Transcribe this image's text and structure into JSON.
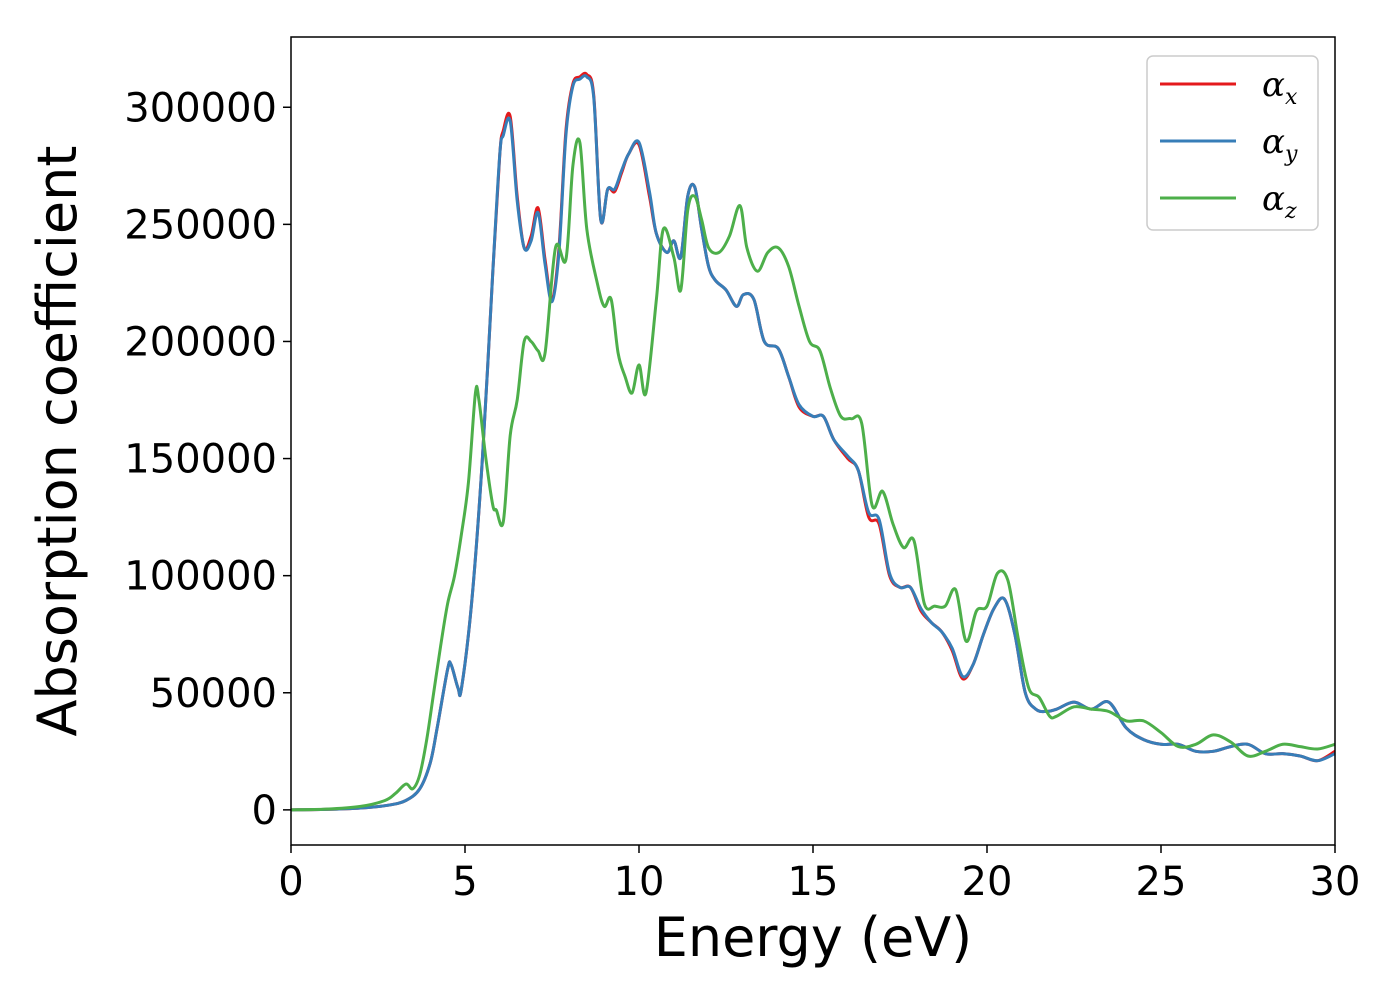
{
  "chart_data": {
    "type": "line",
    "title": "",
    "xlabel": "Energy (eV)",
    "ylabel": "Absorption coefficient",
    "xlim": [
      0,
      30
    ],
    "ylim": [
      -15000,
      330000
    ],
    "xticks": [
      0,
      5,
      10,
      15,
      20,
      25,
      30
    ],
    "xtick_labels": [
      "0",
      "5",
      "10",
      "15",
      "20",
      "25",
      "30"
    ],
    "yticks": [
      0,
      50000,
      100000,
      150000,
      200000,
      250000,
      300000
    ],
    "ytick_labels": [
      "0",
      "50000",
      "100000",
      "150000",
      "200000",
      "250000",
      "300000"
    ],
    "grid": false,
    "legend_position": "top-right",
    "series": [
      {
        "name": "α_x",
        "legend_base": "α",
        "legend_sub": "x",
        "color": "#e41a1c",
        "x": [
          0,
          1,
          2,
          2.8,
          3.3,
          3.7,
          4.0,
          4.2,
          4.5,
          4.6,
          4.8,
          4.9,
          5.2,
          5.5,
          5.8,
          6.0,
          6.1,
          6.3,
          6.5,
          6.7,
          6.9,
          7.1,
          7.3,
          7.5,
          7.7,
          7.9,
          8.1,
          8.3,
          8.5,
          8.7,
          8.9,
          9.1,
          9.3,
          9.5,
          9.7,
          10.0,
          10.3,
          10.5,
          10.8,
          11.0,
          11.2,
          11.4,
          11.6,
          11.8,
          12.0,
          12.2,
          12.5,
          12.8,
          13.0,
          13.3,
          13.6,
          14.0,
          14.3,
          14.6,
          15.0,
          15.3,
          15.6,
          16.0,
          16.3,
          16.6,
          16.9,
          17.2,
          17.5,
          17.8,
          18.1,
          18.4,
          18.7,
          19.0,
          19.3,
          19.6,
          19.9,
          20.2,
          20.5,
          20.8,
          21.1,
          21.4,
          21.7,
          22.0,
          22.5,
          23.0,
          23.5,
          24.0,
          24.5,
          25.0,
          25.5,
          26.0,
          26.5,
          27.0,
          27.5,
          28.0,
          28.5,
          29.0,
          29.5,
          30.0
        ],
        "values": [
          0,
          200,
          800,
          2000,
          4000,
          9000,
          20000,
          35000,
          60000,
          62000,
          52000,
          52000,
          90000,
          150000,
          230000,
          280000,
          290000,
          296000,
          262000,
          240000,
          245000,
          257000,
          235000,
          218000,
          240000,
          290000,
          310000,
          313000,
          314000,
          305000,
          252000,
          265000,
          264000,
          272000,
          280000,
          284000,
          262000,
          246000,
          238000,
          243000,
          236000,
          262000,
          266000,
          248000,
          232000,
          226000,
          222000,
          215000,
          220000,
          218000,
          200000,
          197000,
          185000,
          172000,
          168000,
          168000,
          158000,
          150000,
          145000,
          125000,
          122000,
          100000,
          95000,
          95000,
          85000,
          80000,
          76000,
          68000,
          56000,
          62000,
          75000,
          86000,
          90000,
          75000,
          50000,
          43000,
          42000,
          43000,
          46000,
          43000,
          46000,
          35000,
          30000,
          28000,
          28000,
          25000,
          25000,
          27000,
          28000,
          24000,
          24000,
          23000,
          21000,
          25000
        ]
      },
      {
        "name": "α_y",
        "legend_base": "α",
        "legend_sub": "y",
        "color": "#377eb8",
        "x": [
          0,
          1,
          2,
          2.8,
          3.3,
          3.7,
          4.0,
          4.2,
          4.5,
          4.6,
          4.8,
          4.9,
          5.2,
          5.5,
          5.8,
          6.0,
          6.1,
          6.3,
          6.5,
          6.7,
          6.9,
          7.1,
          7.3,
          7.5,
          7.7,
          7.9,
          8.1,
          8.3,
          8.5,
          8.7,
          8.9,
          9.1,
          9.3,
          9.5,
          9.7,
          10.0,
          10.3,
          10.5,
          10.8,
          11.0,
          11.2,
          11.4,
          11.6,
          11.8,
          12.0,
          12.2,
          12.5,
          12.8,
          13.0,
          13.3,
          13.6,
          14.0,
          14.3,
          14.6,
          15.0,
          15.3,
          15.6,
          16.0,
          16.3,
          16.6,
          16.9,
          17.2,
          17.5,
          17.8,
          18.1,
          18.4,
          18.7,
          19.0,
          19.3,
          19.6,
          19.9,
          20.2,
          20.5,
          20.8,
          21.1,
          21.4,
          21.7,
          22.0,
          22.5,
          23.0,
          23.5,
          24.0,
          24.5,
          25.0,
          25.5,
          26.0,
          26.5,
          27.0,
          27.5,
          28.0,
          28.5,
          29.0,
          29.5,
          30.0
        ],
        "values": [
          0,
          200,
          800,
          2000,
          4000,
          9000,
          20000,
          35000,
          60000,
          62000,
          52000,
          52000,
          90000,
          150000,
          230000,
          280000,
          288000,
          294000,
          260000,
          240000,
          243000,
          255000,
          233000,
          217000,
          238000,
          288000,
          309000,
          312000,
          313000,
          304000,
          252000,
          265000,
          265000,
          273000,
          280000,
          285000,
          264000,
          246000,
          238000,
          243000,
          236000,
          262000,
          266000,
          248000,
          232000,
          226000,
          222000,
          215000,
          220000,
          218000,
          200000,
          197000,
          185000,
          173000,
          168000,
          168000,
          158000,
          151000,
          145000,
          127000,
          124000,
          101000,
          95000,
          95000,
          86000,
          80000,
          76000,
          69000,
          57000,
          62000,
          75000,
          86000,
          90000,
          75000,
          50000,
          43000,
          42000,
          43000,
          46000,
          43000,
          46000,
          35000,
          30000,
          28000,
          28000,
          25000,
          25000,
          27000,
          28000,
          24000,
          24000,
          23000,
          21000,
          24000
        ]
      },
      {
        "name": "α_z",
        "legend_base": "α",
        "legend_sub": "z",
        "color": "#4daf4a",
        "x": [
          0,
          1,
          2,
          2.7,
          3.0,
          3.3,
          3.5,
          3.7,
          3.9,
          4.1,
          4.3,
          4.5,
          4.7,
          4.9,
          5.1,
          5.3,
          5.4,
          5.6,
          5.8,
          5.9,
          6.1,
          6.3,
          6.5,
          6.7,
          6.9,
          7.1,
          7.3,
          7.6,
          7.9,
          8.1,
          8.3,
          8.5,
          8.8,
          9.0,
          9.2,
          9.4,
          9.6,
          9.8,
          10.0,
          10.2,
          10.5,
          10.7,
          11.0,
          11.2,
          11.4,
          11.6,
          11.8,
          12.0,
          12.3,
          12.6,
          12.9,
          13.1,
          13.4,
          13.7,
          14.0,
          14.3,
          14.6,
          14.9,
          15.2,
          15.5,
          15.8,
          16.1,
          16.4,
          16.7,
          17.0,
          17.3,
          17.6,
          17.9,
          18.2,
          18.5,
          18.8,
          19.1,
          19.4,
          19.7,
          20.0,
          20.3,
          20.6,
          20.9,
          21.2,
          21.5,
          21.8,
          22.0,
          22.5,
          23.0,
          23.5,
          24.0,
          24.5,
          25.0,
          25.5,
          26.0,
          26.5,
          27.0,
          27.5,
          28.0,
          28.5,
          29.0,
          29.5,
          30.0
        ],
        "values": [
          0,
          300,
          1500,
          4000,
          7000,
          11000,
          9000,
          15000,
          30000,
          50000,
          70000,
          88000,
          100000,
          118000,
          140000,
          178000,
          175000,
          150000,
          130000,
          128000,
          123000,
          160000,
          175000,
          200000,
          200000,
          196000,
          195000,
          240000,
          235000,
          275000,
          285000,
          248000,
          225000,
          215000,
          218000,
          195000,
          185000,
          178000,
          190000,
          178000,
          218000,
          248000,
          236000,
          222000,
          256000,
          262000,
          252000,
          240000,
          238000,
          245000,
          258000,
          240000,
          230000,
          238000,
          240000,
          232000,
          215000,
          200000,
          196000,
          180000,
          168000,
          167000,
          165000,
          130000,
          136000,
          122000,
          112000,
          115000,
          88000,
          87000,
          87000,
          94000,
          72000,
          85000,
          87000,
          101000,
          98000,
          73000,
          52000,
          48000,
          40000,
          40000,
          44000,
          43000,
          42000,
          38000,
          38000,
          33000,
          27000,
          28000,
          32000,
          29000,
          23000,
          25000,
          28000,
          27000,
          26000,
          28000
        ]
      }
    ]
  }
}
